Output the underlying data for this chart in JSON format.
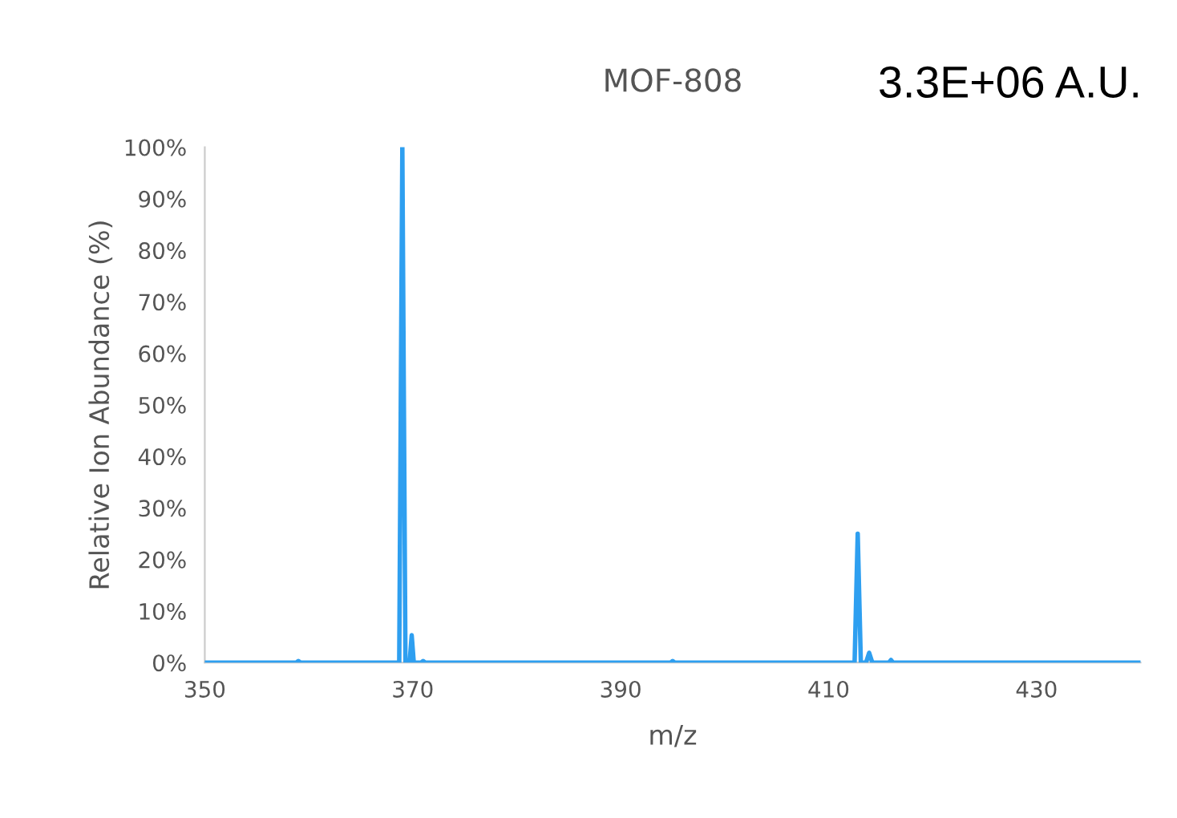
{
  "chart_data": {
    "type": "line",
    "title": "MOF-808",
    "xlabel": "m/z",
    "ylabel": "Relative Ion Abundance (%)",
    "annotations": [
      "3.3E+06 A.U."
    ],
    "series": [
      {
        "color": "#2e9ff0",
        "x": [
          350,
          358.8,
          359,
          359.2,
          368.7,
          369,
          369.3,
          369.7,
          369.9,
          370.1,
          370.8,
          371,
          371.2,
          394.8,
          395,
          395.2,
          412.5,
          412.8,
          413.1,
          413.6,
          413.9,
          414.2,
          415.8,
          416,
          416.2,
          440
        ],
        "values": [
          0,
          0,
          0.3,
          0,
          0,
          100,
          0,
          0,
          5.3,
          0,
          0,
          0.3,
          0,
          0,
          0.3,
          0,
          0,
          25,
          0,
          0,
          1.9,
          0,
          0,
          0.5,
          0,
          0
        ]
      }
    ],
    "xlim": [
      350,
      440
    ],
    "xticks": [
      350,
      370,
      390,
      410,
      430
    ],
    "ylim": [
      0,
      100
    ],
    "yticks": [
      {
        "value": 0,
        "label": "0%"
      },
      {
        "value": 10,
        "label": "10%"
      },
      {
        "value": 20,
        "label": "20%"
      },
      {
        "value": 30,
        "label": "30%"
      },
      {
        "value": 40,
        "label": "40%"
      },
      {
        "value": 50,
        "label": "50%"
      },
      {
        "value": 60,
        "label": "60%"
      },
      {
        "value": 70,
        "label": "70%"
      },
      {
        "value": 80,
        "label": "80%"
      },
      {
        "value": 90,
        "label": "90%"
      },
      {
        "value": 100,
        "label": "100%"
      }
    ],
    "grid": false,
    "legend": false,
    "marker": "none",
    "line_style": "solid"
  }
}
